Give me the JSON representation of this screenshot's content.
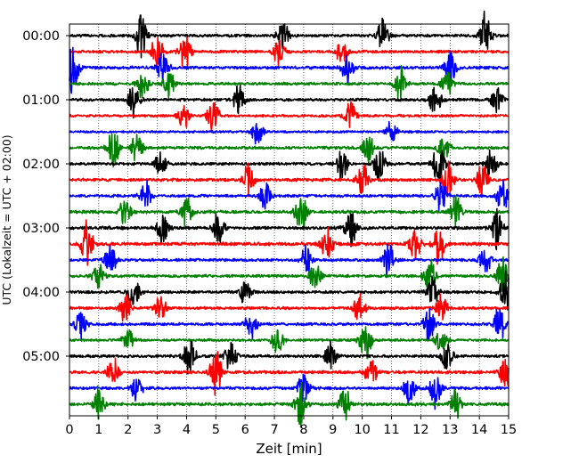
{
  "chart_data": {
    "type": "line",
    "title": "",
    "xlabel": "Zeit  [min]",
    "ylabel": "UTC (Lokalzeit = UTC + 02:00)",
    "xlim": [
      0,
      15
    ],
    "x_ticks": [
      0,
      1,
      2,
      3,
      4,
      5,
      6,
      7,
      8,
      9,
      10,
      11,
      12,
      13,
      14,
      15
    ],
    "x_tick_labels": [
      "0",
      "1",
      "2",
      "3",
      "4",
      "5",
      "6",
      "7",
      "8",
      "9",
      "10",
      "11",
      "12",
      "13",
      "14",
      "15"
    ],
    "y_tick_labels": [
      "00:00",
      "01:00",
      "02:00",
      "03:00",
      "04:00",
      "05:00"
    ],
    "y_tick_rows": [
      0,
      4,
      8,
      12,
      16,
      20
    ],
    "row_minutes": 15,
    "grid_x": true,
    "grid_style": "dotted",
    "colors": [
      "#000000",
      "#ff0000",
      "#0000ff",
      "#008000"
    ],
    "series": [
      {
        "start": "00:00",
        "color": "#000000",
        "amp": 0.45,
        "bursts": [
          [
            2.45,
            1.2
          ],
          [
            7.3,
            0.9
          ],
          [
            10.7,
            1.0
          ],
          [
            14.2,
            1.4
          ]
        ]
      },
      {
        "start": "00:15",
        "color": "#ff0000",
        "amp": 0.45,
        "bursts": [
          [
            3.0,
            1.0
          ],
          [
            3.95,
            1.0
          ],
          [
            7.15,
            0.8
          ],
          [
            9.3,
            0.7
          ]
        ]
      },
      {
        "start": "00:30",
        "color": "#0000ff",
        "amp": 0.5,
        "bursts": [
          [
            0.1,
            1.6
          ],
          [
            3.2,
            0.9
          ],
          [
            9.5,
            0.8
          ],
          [
            13.0,
            1.0
          ]
        ]
      },
      {
        "start": "00:45",
        "color": "#008000",
        "amp": 0.45,
        "bursts": [
          [
            2.5,
            0.9
          ],
          [
            3.4,
            0.8
          ],
          [
            11.3,
            0.9
          ],
          [
            12.9,
            0.8
          ]
        ]
      },
      {
        "start": "01:00",
        "color": "#000000",
        "amp": 0.45,
        "bursts": [
          [
            2.2,
            0.9
          ],
          [
            5.8,
            1.0
          ],
          [
            12.5,
            0.9
          ],
          [
            14.6,
            0.7
          ]
        ]
      },
      {
        "start": "01:15",
        "color": "#ff0000",
        "amp": 0.4,
        "bursts": [
          [
            3.9,
            0.8
          ],
          [
            4.9,
            1.0
          ],
          [
            9.6,
            0.9
          ]
        ]
      },
      {
        "start": "01:30",
        "color": "#0000ff",
        "amp": 0.35,
        "bursts": [
          [
            6.4,
            0.7
          ],
          [
            11.0,
            0.6
          ]
        ]
      },
      {
        "start": "01:45",
        "color": "#008000",
        "amp": 0.45,
        "bursts": [
          [
            1.5,
            1.3
          ],
          [
            2.3,
            0.9
          ],
          [
            10.2,
            0.8
          ],
          [
            12.8,
            0.8
          ]
        ]
      },
      {
        "start": "02:00",
        "color": "#000000",
        "amp": 0.45,
        "bursts": [
          [
            3.1,
            0.8
          ],
          [
            9.3,
            0.9
          ],
          [
            10.6,
            1.0
          ],
          [
            12.6,
            1.5
          ],
          [
            14.4,
            0.8
          ]
        ]
      },
      {
        "start": "02:15",
        "color": "#ff0000",
        "amp": 0.5,
        "bursts": [
          [
            6.1,
            1.0
          ],
          [
            10.0,
            1.1
          ],
          [
            12.9,
            1.3
          ],
          [
            14.1,
            1.0
          ]
        ]
      },
      {
        "start": "02:30",
        "color": "#0000ff",
        "amp": 0.45,
        "bursts": [
          [
            2.6,
            0.8
          ],
          [
            6.7,
            0.8
          ],
          [
            12.7,
            1.0
          ],
          [
            14.8,
            1.0
          ]
        ]
      },
      {
        "start": "02:45",
        "color": "#008000",
        "amp": 0.5,
        "bursts": [
          [
            1.9,
            0.9
          ],
          [
            4.0,
            1.0
          ],
          [
            7.9,
            1.3
          ],
          [
            13.2,
            1.0
          ]
        ]
      },
      {
        "start": "03:00",
        "color": "#000000",
        "amp": 0.5,
        "bursts": [
          [
            3.2,
            0.9
          ],
          [
            5.1,
            0.9
          ],
          [
            9.6,
            1.0
          ],
          [
            14.6,
            1.1
          ]
        ]
      },
      {
        "start": "03:15",
        "color": "#ff0000",
        "amp": 0.55,
        "bursts": [
          [
            0.6,
            1.4
          ],
          [
            8.8,
            1.0
          ],
          [
            11.8,
            0.9
          ],
          [
            12.6,
            1.2
          ]
        ]
      },
      {
        "start": "03:30",
        "color": "#0000ff",
        "amp": 0.45,
        "bursts": [
          [
            1.4,
            0.9
          ],
          [
            8.1,
            0.8
          ],
          [
            10.9,
            1.0
          ],
          [
            14.2,
            0.8
          ]
        ]
      },
      {
        "start": "03:45",
        "color": "#008000",
        "amp": 0.45,
        "bursts": [
          [
            1.0,
            0.8
          ],
          [
            8.4,
            0.9
          ],
          [
            12.3,
            1.0
          ],
          [
            14.8,
            1.0
          ]
        ]
      },
      {
        "start": "04:00",
        "color": "#000000",
        "amp": 0.45,
        "bursts": [
          [
            2.2,
            0.9
          ],
          [
            6.0,
            0.8
          ],
          [
            12.4,
            0.9
          ],
          [
            14.9,
            1.1
          ]
        ]
      },
      {
        "start": "04:15",
        "color": "#ff0000",
        "amp": 0.45,
        "bursts": [
          [
            1.9,
            0.9
          ],
          [
            3.1,
            0.8
          ],
          [
            9.9,
            0.8
          ],
          [
            12.7,
            0.9
          ]
        ]
      },
      {
        "start": "04:30",
        "color": "#0000ff",
        "amp": 0.45,
        "bursts": [
          [
            0.4,
            0.9
          ],
          [
            6.2,
            0.8
          ],
          [
            12.3,
            0.9
          ],
          [
            14.7,
            1.0
          ]
        ]
      },
      {
        "start": "04:45",
        "color": "#008000",
        "amp": 0.4,
        "bursts": [
          [
            2.0,
            0.8
          ],
          [
            7.1,
            0.8
          ],
          [
            10.1,
            1.2
          ],
          [
            12.7,
            0.8
          ]
        ]
      },
      {
        "start": "05:00",
        "color": "#000000",
        "amp": 0.45,
        "bursts": [
          [
            4.1,
            1.2
          ],
          [
            5.5,
            0.9
          ],
          [
            8.9,
            0.9
          ],
          [
            12.9,
            0.9
          ]
        ]
      },
      {
        "start": "05:15",
        "color": "#ff0000",
        "amp": 0.5,
        "bursts": [
          [
            1.5,
            0.8
          ],
          [
            5.0,
            1.3
          ],
          [
            10.3,
            0.9
          ],
          [
            14.9,
            1.0
          ]
        ]
      },
      {
        "start": "05:30",
        "color": "#0000ff",
        "amp": 0.45,
        "bursts": [
          [
            2.3,
            0.9
          ],
          [
            8.0,
            1.0
          ],
          [
            11.6,
            0.9
          ],
          [
            12.5,
            1.1
          ]
        ]
      },
      {
        "start": "05:45",
        "color": "#008000",
        "amp": 0.5,
        "bursts": [
          [
            1.0,
            0.9
          ],
          [
            7.9,
            1.4
          ],
          [
            9.4,
            0.9
          ],
          [
            13.2,
            0.9
          ]
        ]
      }
    ]
  }
}
